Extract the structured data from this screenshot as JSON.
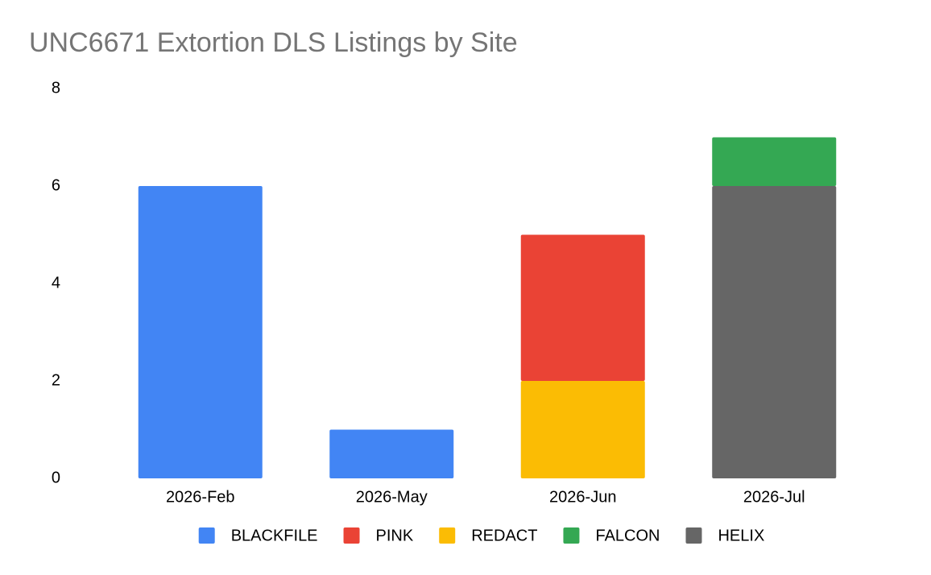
{
  "chart_data": {
    "type": "bar",
    "stacked": true,
    "title": "UNC6671 Extortion DLS Listings by Site",
    "categories": [
      "2026-Feb",
      "2026-May",
      "2026-Jun",
      "2026-Jul"
    ],
    "series": [
      {
        "name": "BLACKFILE",
        "color": "#4285f4",
        "values": [
          6,
          1,
          null,
          null
        ]
      },
      {
        "name": "PINK",
        "color": "#ea4335",
        "values": [
          null,
          null,
          3,
          null
        ]
      },
      {
        "name": "REDACT",
        "color": "#fbbc04",
        "values": [
          null,
          null,
          2,
          null
        ]
      },
      {
        "name": "FALCON",
        "color": "#34a853",
        "values": [
          null,
          null,
          null,
          1
        ]
      },
      {
        "name": "HELIX",
        "color": "#666666",
        "values": [
          null,
          null,
          null,
          6
        ]
      }
    ],
    "ylim": [
      0,
      8
    ],
    "yticks": [
      0,
      2,
      4,
      6,
      8
    ],
    "grid": false,
    "legend": "bottom"
  }
}
